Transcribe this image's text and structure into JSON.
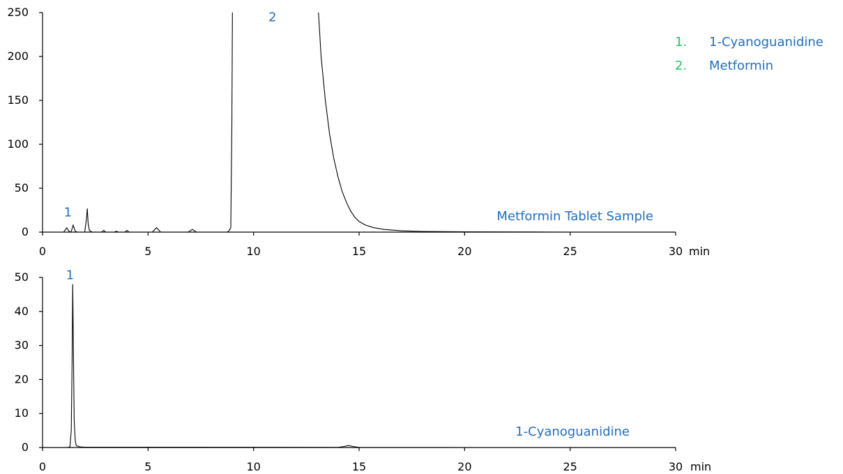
{
  "colors": {
    "annotation": "#1f6fc1",
    "legend_number": "#22c55e",
    "trace": "#000000"
  },
  "legend": [
    {
      "number": "1.",
      "name": "1-Cyanoguanidine"
    },
    {
      "number": "2.",
      "name": "Metformin"
    }
  ],
  "chart_data": [
    {
      "type": "line",
      "trace_label": "Metformin Tablet Sample",
      "x_unit": "min",
      "xlim": [
        0,
        30
      ],
      "ylim": [
        0,
        250
      ],
      "xticks": [
        0,
        5,
        10,
        15,
        20,
        25,
        30
      ],
      "yticks": [
        0,
        50,
        100,
        150,
        200,
        250
      ],
      "peak_labels": [
        {
          "text": "1",
          "x": 1.2,
          "y": 18
        },
        {
          "text": "2",
          "x": 10.9,
          "y": 240
        }
      ],
      "x": [
        0,
        1.0,
        1.15,
        1.25,
        1.35,
        1.45,
        1.55,
        1.65,
        2.0,
        2.08,
        2.12,
        2.16,
        2.22,
        2.35,
        2.8,
        2.9,
        3.0,
        3.4,
        3.5,
        3.6,
        3.9,
        4.0,
        4.1,
        5.2,
        5.4,
        5.6,
        6.9,
        7.1,
        7.3,
        8.75,
        8.85,
        8.92,
        8.97,
        9.0,
        13.05,
        13.2,
        13.4,
        13.6,
        13.8,
        14.0,
        14.2,
        14.4,
        14.6,
        14.8,
        15.0,
        15.3,
        15.7,
        16.2,
        17.0,
        18.0,
        20.0,
        25.0,
        30.0
      ],
      "y": [
        0,
        0,
        5,
        1,
        0,
        8,
        1,
        0,
        0,
        15,
        27,
        10,
        2,
        0,
        0,
        2,
        0,
        0,
        1,
        0,
        0,
        2,
        0,
        0,
        5,
        0,
        0,
        3,
        0,
        0,
        2,
        5,
        120,
        260,
        260,
        200,
        150,
        112,
        84,
        63,
        46,
        34,
        24,
        17,
        12,
        8,
        5,
        3,
        1.5,
        0.8,
        0.3,
        0,
        0
      ]
    },
    {
      "type": "line",
      "trace_label": "1-Cyanoguanidine",
      "x_unit": "min",
      "xlim": [
        0,
        30
      ],
      "ylim": [
        0,
        50
      ],
      "xticks": [
        0,
        5,
        10,
        15,
        20,
        25,
        30
      ],
      "yticks": [
        0,
        10,
        20,
        30,
        40,
        50
      ],
      "peak_labels": [
        {
          "text": "1",
          "x": 1.3,
          "y": 49.5
        }
      ],
      "x": [
        0,
        1.2,
        1.3,
        1.36,
        1.4,
        1.43,
        1.46,
        1.5,
        1.55,
        1.6,
        1.75,
        2.0,
        14.0,
        14.3,
        14.5,
        14.7,
        15.0,
        20.0,
        30.0
      ],
      "y": [
        0,
        0,
        0.2,
        5,
        25,
        48,
        30,
        8,
        2,
        0.6,
        0.2,
        0.1,
        0.05,
        0.3,
        0.6,
        0.3,
        0.05,
        0,
        0
      ]
    }
  ]
}
